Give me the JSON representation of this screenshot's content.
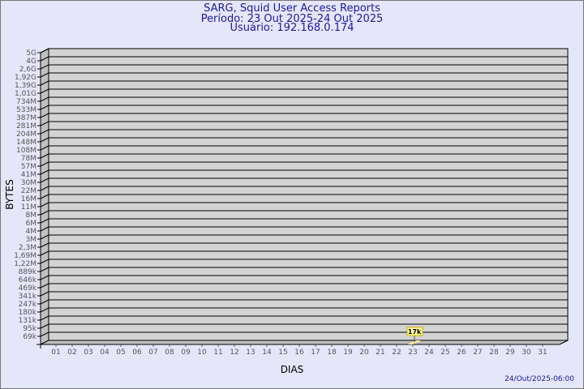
{
  "chart_data": {
    "type": "bar",
    "title": "SARG, Squid User Access Reports",
    "subtitle_period": "Período: 23 Out 2025-24 Out 2025",
    "subtitle_user": "Usuário: 192.168.0.174",
    "xlabel": "DIAS",
    "ylabel": "BYTES",
    "y_scale": "log",
    "grid": true,
    "categories": [
      "01",
      "02",
      "03",
      "04",
      "05",
      "06",
      "07",
      "08",
      "09",
      "10",
      "11",
      "12",
      "13",
      "14",
      "15",
      "16",
      "17",
      "18",
      "19",
      "20",
      "21",
      "22",
      "23",
      "24",
      "25",
      "26",
      "27",
      "28",
      "29",
      "30",
      "31"
    ],
    "y_tick_labels": [
      "5G",
      "4G",
      "2,6G",
      "1,92G",
      "1,39G",
      "1,01G",
      "734M",
      "533M",
      "387M",
      "281M",
      "204M",
      "148M",
      "108M",
      "78M",
      "57M",
      "41M",
      "30M",
      "22M",
      "16M",
      "11M",
      "8M",
      "6M",
      "4M",
      "3M",
      "2,3M",
      "1,69M",
      "1,22M",
      "889k",
      "646k",
      "469k",
      "341k",
      "247k",
      "180k",
      "131k",
      "95k",
      "69k"
    ],
    "bars": [
      {
        "category": "23",
        "value": 17000,
        "label": "17k"
      }
    ],
    "timestamp": "24/Out/2025-06:00",
    "colors": {
      "background": "#e6e6fa",
      "wall": "#d3d3d3",
      "side": "#c0c0c0",
      "bar": "#ffe89a",
      "title": "#1a1aa0"
    }
  }
}
